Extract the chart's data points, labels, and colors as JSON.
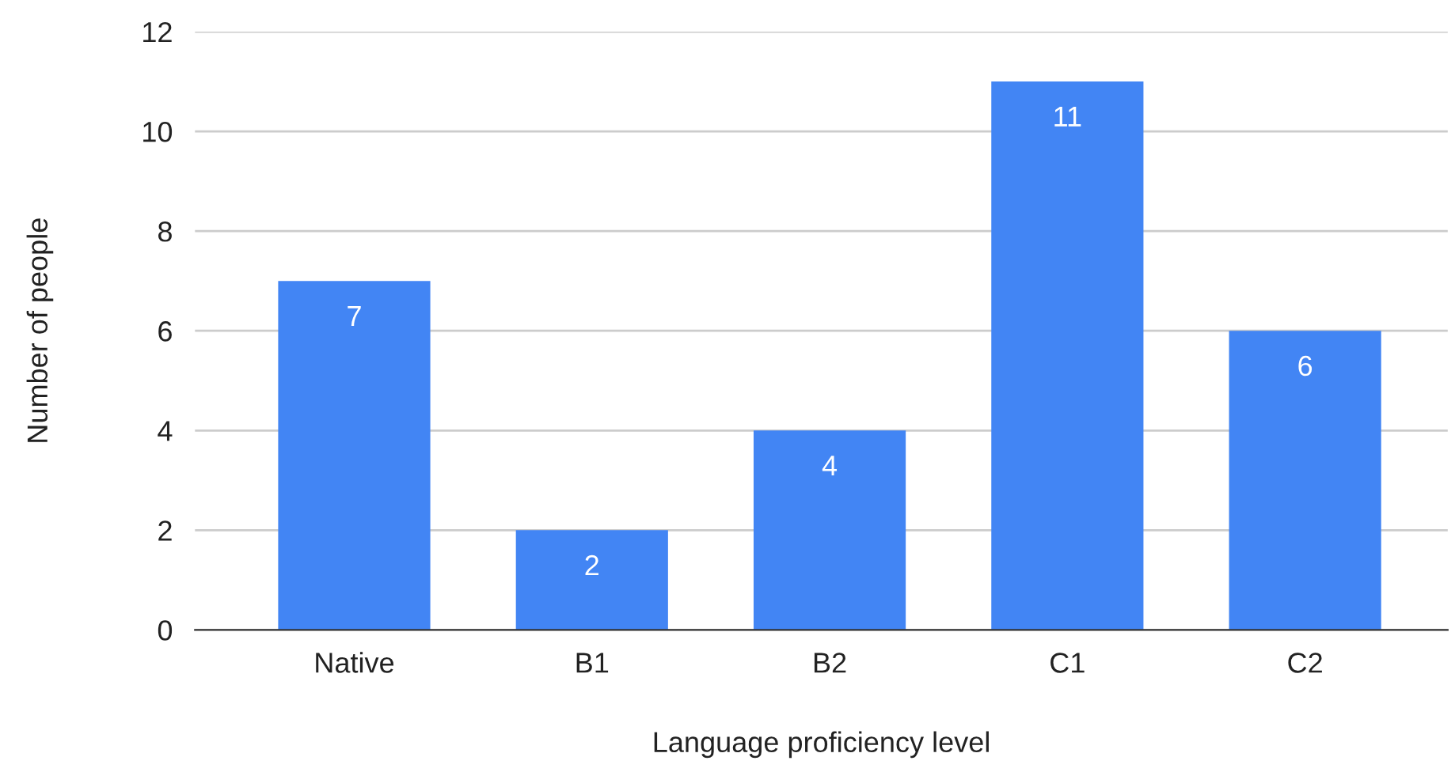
{
  "chart_data": {
    "type": "bar",
    "xlabel": "Language proficiency level",
    "ylabel": "Number of people",
    "categories": [
      "Native",
      "B1",
      "B2",
      "C1",
      "C2"
    ],
    "values": [
      7,
      2,
      4,
      11,
      6
    ],
    "color": "#4285f4",
    "ylim": [
      0,
      12
    ],
    "yticks": [
      0,
      2,
      4,
      6,
      8,
      10,
      12
    ],
    "grid": "y",
    "data_labels": true,
    "legend": false
  }
}
